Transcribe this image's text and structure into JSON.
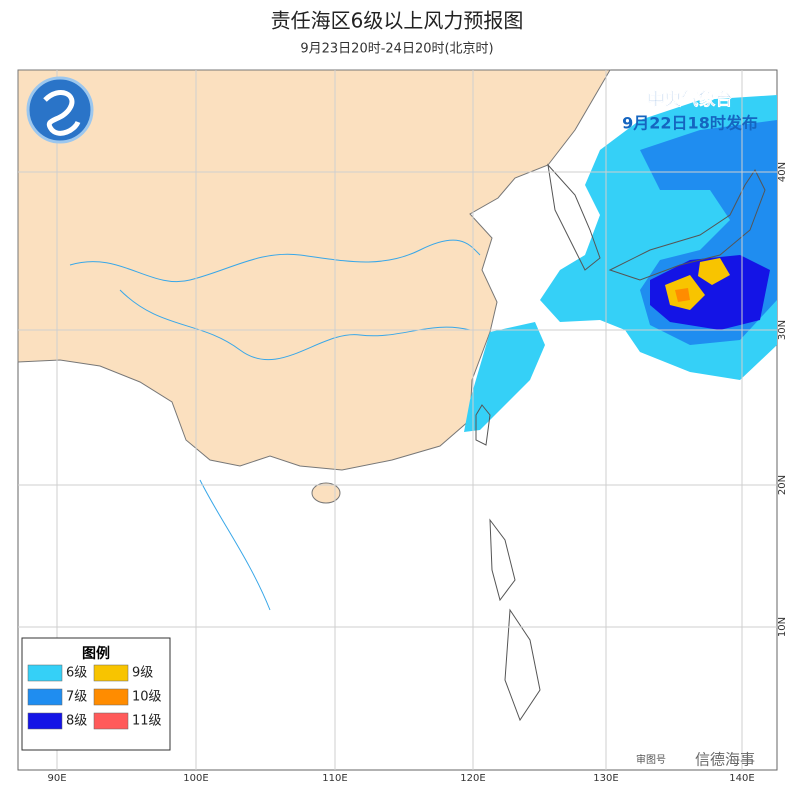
{
  "header": {
    "title": "责任海区6级以上风力预报图",
    "subtitle": "9月23日20时-24日20时(北京时)"
  },
  "issuer": {
    "name": "中央气象台",
    "time": "9月22日18时发布"
  },
  "legend": {
    "title": "图例",
    "items": [
      {
        "label": "6级",
        "color": "#35d0f7"
      },
      {
        "label": "9级",
        "color": "#f8c400"
      },
      {
        "label": "7级",
        "color": "#1f8df0"
      },
      {
        "label": "10级",
        "color": "#ff8c00"
      },
      {
        "label": "8级",
        "color": "#1414e6"
      },
      {
        "label": "11级",
        "color": "#ff5a5a"
      }
    ]
  },
  "axes": {
    "longitude": [
      "90E",
      "100E",
      "110E",
      "120E",
      "130E",
      "140E"
    ],
    "latitude": [
      "40N",
      "30N",
      "20N",
      "10N"
    ]
  },
  "watermark": {
    "map_no": "审图号",
    "source": "信德海事"
  }
}
